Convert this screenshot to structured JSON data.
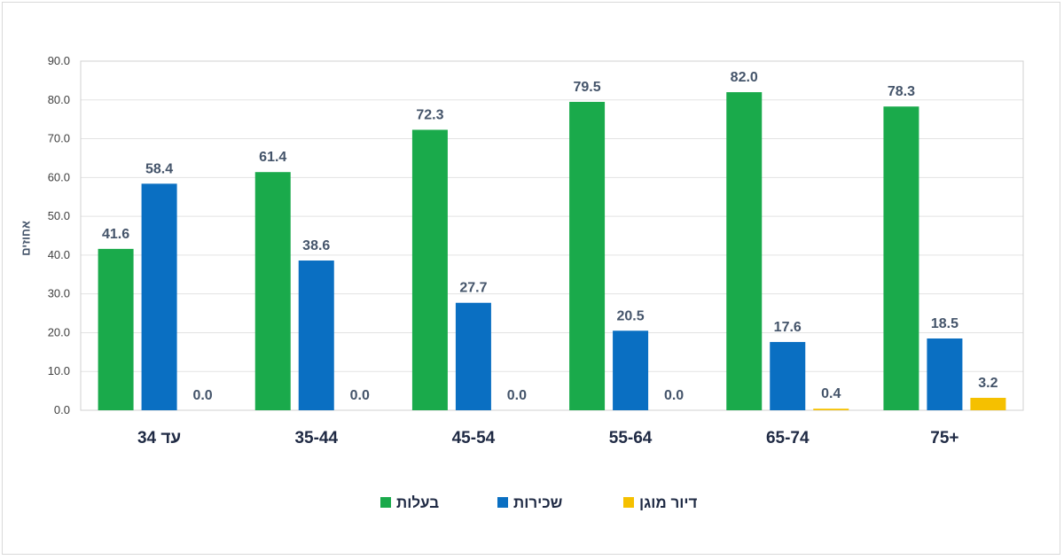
{
  "chart_data": {
    "type": "bar",
    "categories": [
      "עד 34",
      "35-44",
      "45-54",
      "55-64",
      "65-74",
      "75+"
    ],
    "series": [
      {
        "name": "בעלות",
        "color": "#1aaa4b",
        "values": [
          41.6,
          61.4,
          72.3,
          79.5,
          82.0,
          78.3
        ]
      },
      {
        "name": "שכירות",
        "color": "#0a6fc2",
        "values": [
          58.4,
          38.6,
          27.7,
          20.5,
          17.6,
          18.5
        ]
      },
      {
        "name": "דיור מוגן",
        "color": "#f5c000",
        "values": [
          0.0,
          0.0,
          0.0,
          0.0,
          0.4,
          3.2
        ]
      }
    ],
    "ylabel": "אחוזים",
    "xlabel": "",
    "title": "",
    "ylim": [
      0,
      90
    ],
    "yticks": [
      "0.0",
      "10.0",
      "20.0",
      "30.0",
      "40.0",
      "50.0",
      "60.0",
      "70.0",
      "80.0",
      "90.0"
    ],
    "grid": true,
    "legend_position": "bottom"
  }
}
